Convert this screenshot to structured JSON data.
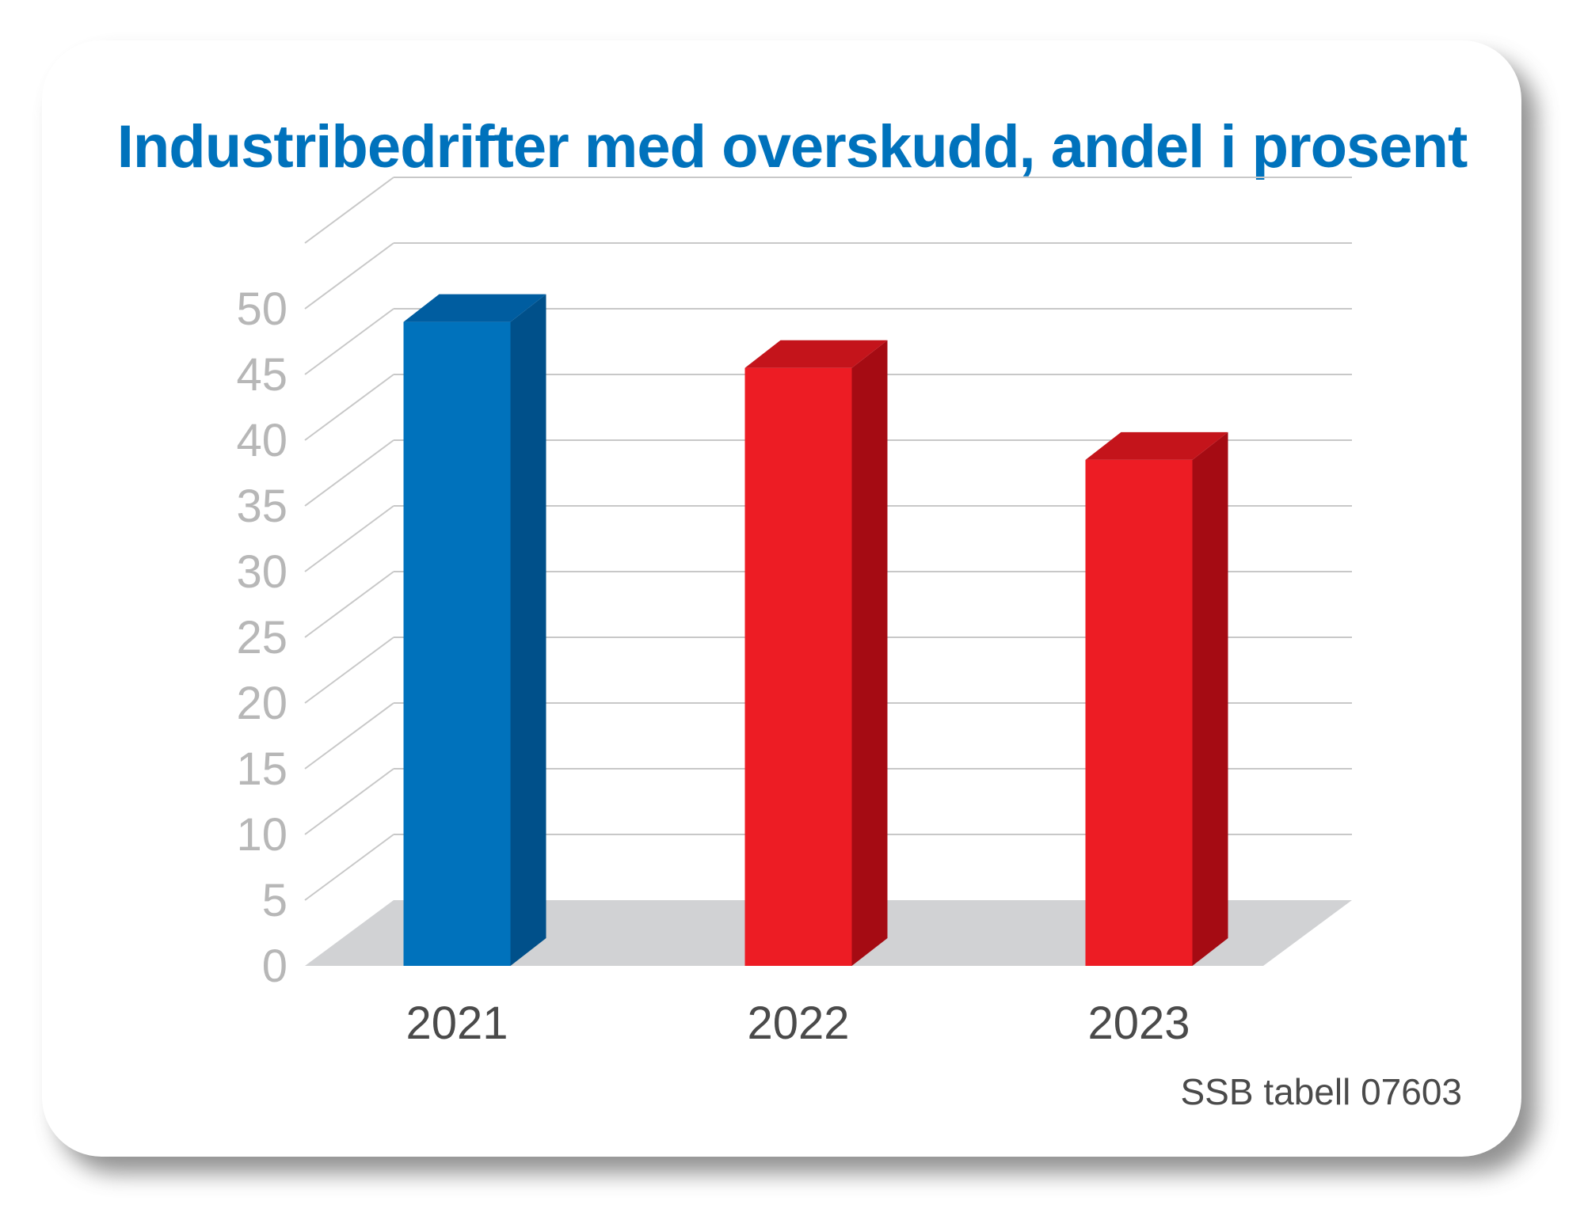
{
  "chart_data": {
    "type": "bar",
    "title": "Industribedrifter med overskudd, andel i prosent",
    "categories": [
      "2021",
      "2022",
      "2023"
    ],
    "values": [
      49,
      45.5,
      38.5
    ],
    "bar_colors": [
      "#0072bc",
      "#ed1c24",
      "#ed1c24"
    ],
    "bar_side_colors": [
      "#00508a",
      "#a50b13",
      "#a50b13"
    ],
    "bar_top_colors": [
      "#005da0",
      "#c4141b",
      "#c4141b"
    ],
    "ylim": [
      0,
      55
    ],
    "yticks": [
      0,
      5,
      10,
      15,
      20,
      25,
      30,
      35,
      40,
      45,
      50
    ],
    "grid": true,
    "three_d": true,
    "source": "SSB tabell 07603"
  }
}
